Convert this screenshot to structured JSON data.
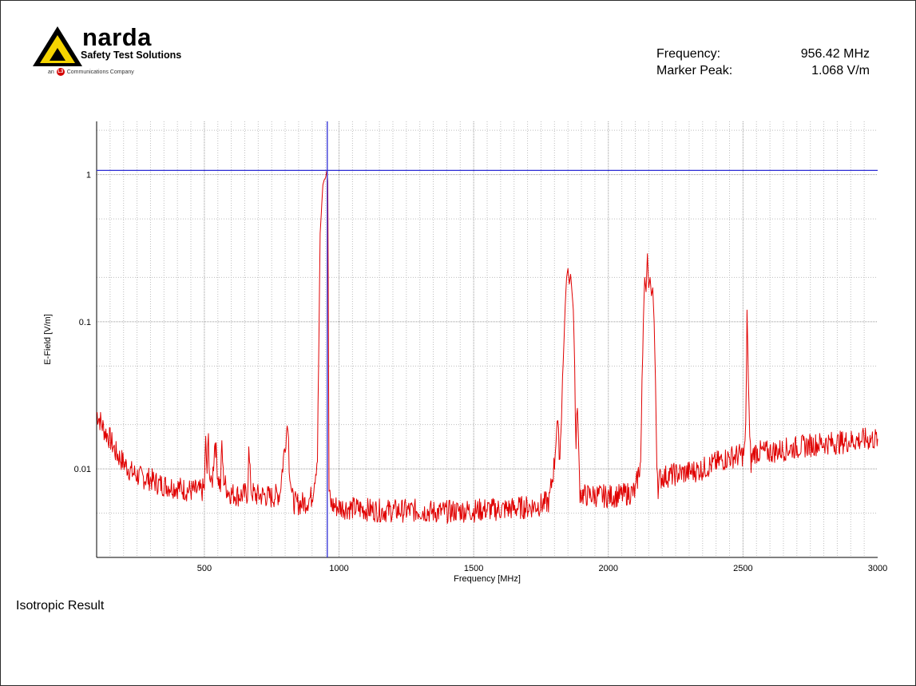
{
  "logo": {
    "name": "narda",
    "tagline": "Safety Test Solutions",
    "company_prefix": "an",
    "company_badge": "L3",
    "company_suffix": "Communications Company",
    "triangle_color": "#f5d400"
  },
  "readout": {
    "frequency_label": "Frequency:",
    "frequency_value": "956.42 MHz",
    "marker_label": "Marker Peak:",
    "marker_value": "1.068 V/m"
  },
  "footer": {
    "result_title": "Isotropic Result"
  },
  "chart_data": {
    "type": "line",
    "xlabel": "Frequency [MHz]",
    "ylabel": "E-Field [V/m]",
    "xlim": [
      100,
      3000
    ],
    "ylim": [
      0.0025,
      2.3
    ],
    "yscale": "log",
    "grid": true,
    "x_ticks": [
      500,
      1000,
      1500,
      2000,
      2500,
      3000
    ],
    "x_tick_labels": [
      "500",
      "1000",
      "1500",
      "2000",
      "2500",
      "3000"
    ],
    "y_ticks": [
      0.01,
      0.1,
      1
    ],
    "y_tick_labels": [
      "0.01",
      "0.1",
      "1"
    ],
    "marker": {
      "x": 956.42,
      "y": 1.068,
      "color": "#2b2bd6"
    },
    "series": [
      {
        "color": "#e00000",
        "x": [
          100,
          110,
          130,
          150,
          170,
          200,
          230,
          260,
          300,
          330,
          360,
          400,
          430,
          460,
          490,
          500,
          505,
          510,
          515,
          520,
          525,
          530,
          540,
          550,
          560,
          565,
          570,
          580,
          590,
          600,
          630,
          660,
          665,
          670,
          675,
          690,
          720,
          750,
          780,
          800,
          805,
          810,
          815,
          820,
          825,
          830,
          840,
          860,
          880,
          900,
          920,
          930,
          940,
          945,
          950,
          955,
          958,
          960,
          963,
          966,
          970,
          980,
          1000,
          1050,
          1100,
          1150,
          1200,
          1250,
          1300,
          1350,
          1400,
          1450,
          1500,
          1550,
          1600,
          1650,
          1700,
          1750,
          1780,
          1800,
          1805,
          1810,
          1815,
          1820,
          1830,
          1840,
          1845,
          1850,
          1855,
          1860,
          1865,
          1870,
          1875,
          1880,
          1885,
          1890,
          1895,
          1900,
          1910,
          1950,
          2000,
          2050,
          2100,
          2110,
          2120,
          2125,
          2130,
          2135,
          2140,
          2145,
          2150,
          2155,
          2160,
          2165,
          2170,
          2175,
          2180,
          2185,
          2190,
          2200,
          2250,
          2300,
          2350,
          2400,
          2450,
          2500,
          2505,
          2510,
          2515,
          2520,
          2525,
          2530,
          2540,
          2600,
          2650,
          2700,
          2750,
          2800,
          2850,
          2900,
          2950,
          3000
        ],
        "y": [
          0.024,
          0.022,
          0.018,
          0.016,
          0.013,
          0.011,
          0.0095,
          0.0088,
          0.0085,
          0.0079,
          0.0077,
          0.0075,
          0.0072,
          0.0071,
          0.007,
          0.0075,
          0.015,
          0.0095,
          0.016,
          0.009,
          0.0075,
          0.0085,
          0.016,
          0.009,
          0.0075,
          0.015,
          0.009,
          0.0075,
          0.007,
          0.0068,
          0.0066,
          0.0068,
          0.013,
          0.009,
          0.007,
          0.0066,
          0.0066,
          0.0064,
          0.0068,
          0.015,
          0.018,
          0.022,
          0.011,
          0.0085,
          0.0065,
          0.006,
          0.0058,
          0.0058,
          0.006,
          0.0065,
          0.012,
          0.4,
          0.85,
          0.92,
          0.95,
          1.068,
          0.9,
          0.2,
          0.007,
          0.0062,
          0.0058,
          0.0056,
          0.0055,
          0.0054,
          0.0053,
          0.0052,
          0.0052,
          0.0052,
          0.0052,
          0.0051,
          0.0051,
          0.0052,
          0.0052,
          0.0053,
          0.0053,
          0.0054,
          0.0055,
          0.0057,
          0.006,
          0.011,
          0.016,
          0.021,
          0.016,
          0.012,
          0.04,
          0.13,
          0.2,
          0.23,
          0.18,
          0.21,
          0.16,
          0.12,
          0.05,
          0.013,
          0.03,
          0.012,
          0.007,
          0.0068,
          0.0066,
          0.0066,
          0.0065,
          0.0066,
          0.007,
          0.009,
          0.011,
          0.035,
          0.1,
          0.2,
          0.16,
          0.29,
          0.17,
          0.2,
          0.15,
          0.17,
          0.1,
          0.04,
          0.012,
          0.0075,
          0.0085,
          0.0088,
          0.0092,
          0.0095,
          0.01,
          0.011,
          0.012,
          0.0125,
          0.013,
          0.018,
          0.12,
          0.04,
          0.015,
          0.011,
          0.013,
          0.013,
          0.0135,
          0.014,
          0.0145,
          0.015,
          0.015,
          0.0155,
          0.0158,
          0.016
        ]
      }
    ]
  }
}
